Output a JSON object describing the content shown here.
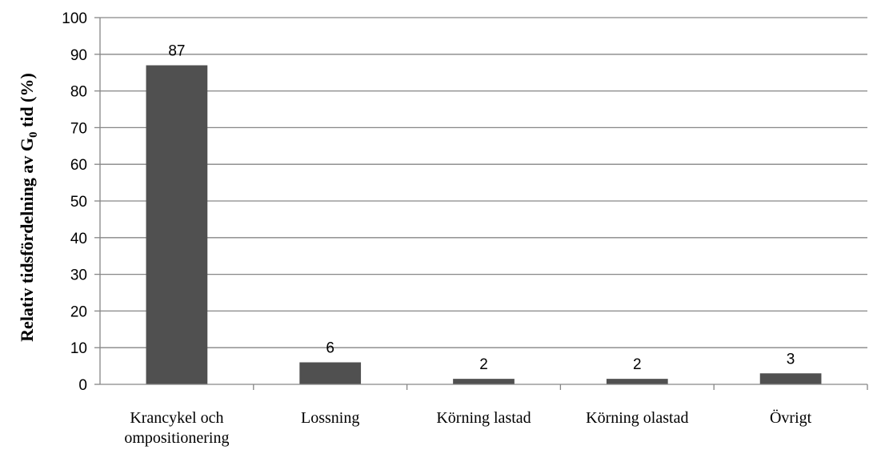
{
  "chart_data": {
    "type": "bar",
    "categories": [
      [
        "Krancykel och",
        "ompositionering"
      ],
      [
        "Lossning"
      ],
      [
        "Körning lastad"
      ],
      [
        "Körning olastad"
      ],
      [
        "Övrigt"
      ]
    ],
    "values": [
      87,
      6,
      1.5,
      1.5,
      3
    ],
    "data_labels": [
      "87",
      "6",
      "2",
      "2",
      "3"
    ],
    "title": "",
    "xlabel": "",
    "ylabel": {
      "main": "Relativ tidsfördelning av G",
      "subscript": "0",
      "suffix": " tid (%)"
    },
    "ylim": [
      0,
      100
    ],
    "yticks": [
      0,
      10,
      20,
      30,
      40,
      50,
      60,
      70,
      80,
      90,
      100
    ],
    "grid": true,
    "legend": "none",
    "bar_color": "#505050",
    "grid_color": "#868686"
  }
}
